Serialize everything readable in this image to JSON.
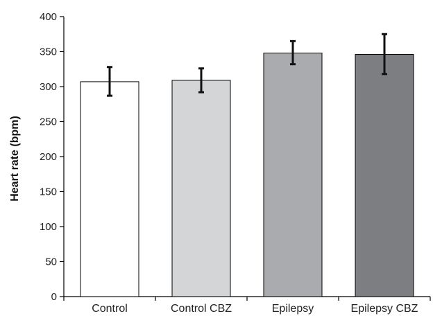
{
  "chart_data": {
    "type": "bar",
    "categories": [
      "Control",
      "Control CBZ",
      "Epilepsy",
      "Epilepsy CBZ"
    ],
    "values": [
      307,
      309,
      348,
      346
    ],
    "error_low": [
      287,
      292,
      332,
      318
    ],
    "error_high": [
      328,
      326,
      365,
      375
    ],
    "bar_colors": [
      "#ffffff",
      "#d4d5d7",
      "#aaabae",
      "#7d7e82"
    ],
    "title": "",
    "xlabel": "",
    "ylabel": "Heart rate (bpm)",
    "ylim": [
      0,
      400
    ],
    "yticks": [
      "0",
      "50",
      "100",
      "150",
      "200",
      "250",
      "300",
      "350",
      "400"
    ],
    "grid": false,
    "legend": "none"
  }
}
